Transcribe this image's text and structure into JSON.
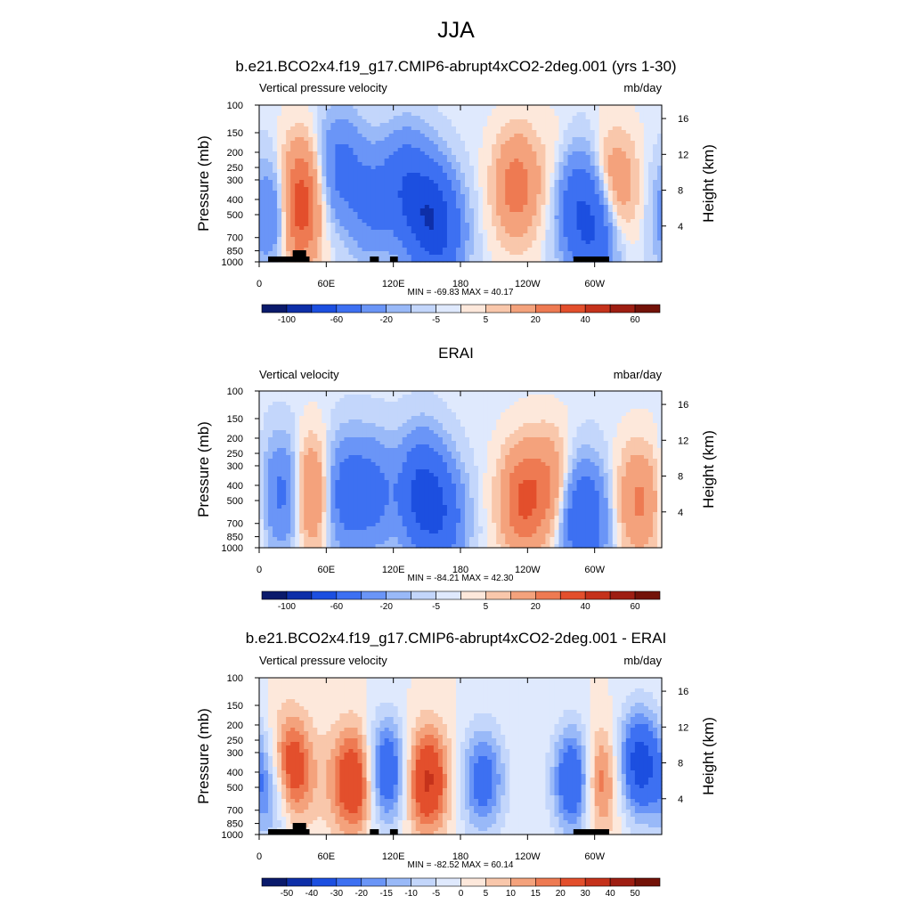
{
  "main_title": "JJA",
  "chart_data": [
    {
      "type": "heatmap",
      "title": "b.e21.BCO2x4.f19_g17.CMIP6-abrupt4xCO2-2deg.001 (yrs 1-30)",
      "left_label": "Vertical pressure velocity",
      "right_label": "mb/day",
      "ylabel": "Pressure (mb)",
      "y2label": "Height (km)",
      "xticks": [
        "0",
        "60E",
        "120E",
        "180",
        "120W",
        "60W"
      ],
      "xtick_values": [
        0,
        60,
        120,
        180,
        240,
        300
      ],
      "xlim": [
        0,
        360
      ],
      "pressure_ticks": [
        100,
        150,
        200,
        250,
        300,
        400,
        500,
        700,
        850,
        1000
      ],
      "height_ticks": [
        4,
        8,
        12,
        16
      ],
      "stats": "MIN = -69.83  MAX =  40.17",
      "colorbar_ticks": [
        "-100",
        "-60",
        "-20",
        "-5",
        "5",
        "20",
        "40",
        "60"
      ],
      "colorbar_levels": [
        -100,
        -80,
        -60,
        -40,
        -20,
        -10,
        -5,
        -1,
        1,
        5,
        10,
        20,
        30,
        40,
        50,
        60
      ],
      "anomalies": [
        {
          "lon": 15,
          "p": 500,
          "v": -30
        },
        {
          "lon": 36,
          "p": 350,
          "v": 28
        },
        {
          "lon": 32,
          "p": 600,
          "v": 24
        },
        {
          "lon": 72,
          "p": 250,
          "v": -24
        },
        {
          "lon": 100,
          "p": 420,
          "v": -22
        },
        {
          "lon": 130,
          "p": 330,
          "v": -30
        },
        {
          "lon": 150,
          "p": 500,
          "v": -40
        },
        {
          "lon": 165,
          "p": 650,
          "v": -28
        },
        {
          "lon": 230,
          "p": 330,
          "v": 26
        },
        {
          "lon": 282,
          "p": 400,
          "v": -32
        },
        {
          "lon": 300,
          "p": 650,
          "v": -35
        },
        {
          "lon": 318,
          "p": 330,
          "v": 20
        },
        {
          "lon": 270,
          "p": 300,
          "v": 10
        }
      ],
      "topo": [
        [
          8,
          45
        ],
        [
          99,
          107
        ],
        [
          117,
          124
        ],
        [
          281,
          313
        ],
        [
          30,
          42
        ]
      ]
    },
    {
      "type": "heatmap",
      "title": "ERAI",
      "left_label": "Vertical velocity",
      "right_label": "mbar/day",
      "ylabel": "Pressure (mb)",
      "y2label": "Height (km)",
      "xticks": [
        "0",
        "60E",
        "120E",
        "180",
        "120W",
        "60W"
      ],
      "xtick_values": [
        0,
        60,
        120,
        180,
        240,
        300
      ],
      "xlim": [
        0,
        360
      ],
      "pressure_ticks": [
        100,
        150,
        200,
        250,
        300,
        400,
        500,
        700,
        850,
        1000
      ],
      "height_ticks": [
        4,
        8,
        12,
        16
      ],
      "stats": "MIN = -84.21  MAX =  42.30",
      "colorbar_ticks": [
        "-100",
        "-60",
        "-20",
        "-5",
        "5",
        "20",
        "40",
        "60"
      ],
      "colorbar_levels": [
        -100,
        -80,
        -60,
        -40,
        -20,
        -10,
        -5,
        -1,
        1,
        5,
        10,
        20,
        30,
        40,
        50,
        60
      ],
      "anomalies": [
        {
          "lon": 24,
          "p": 450,
          "v": -30
        },
        {
          "lon": 45,
          "p": 450,
          "v": 32
        },
        {
          "lon": 75,
          "p": 450,
          "v": -28
        },
        {
          "lon": 102,
          "p": 450,
          "v": -24
        },
        {
          "lon": 145,
          "p": 450,
          "v": -45
        },
        {
          "lon": 165,
          "p": 650,
          "v": -28
        },
        {
          "lon": 235,
          "p": 500,
          "v": 30
        },
        {
          "lon": 260,
          "p": 400,
          "v": 18
        },
        {
          "lon": 290,
          "p": 650,
          "v": -40
        },
        {
          "lon": 340,
          "p": 500,
          "v": 22
        }
      ],
      "topo": []
    },
    {
      "type": "heatmap",
      "title": "b.e21.BCO2x4.f19_g17.CMIP6-abrupt4xCO2-2deg.001 - ERAI",
      "left_label": "Vertical pressure velocity",
      "right_label": "mb/day",
      "ylabel": "Pressure (mb)",
      "y2label": "Height (km)",
      "xticks": [
        "0",
        "60E",
        "120E",
        "180",
        "120W",
        "60W"
      ],
      "xtick_values": [
        0,
        60,
        120,
        180,
        240,
        300
      ],
      "xlim": [
        0,
        360
      ],
      "pressure_ticks": [
        100,
        150,
        200,
        250,
        300,
        400,
        500,
        700,
        850,
        1000
      ],
      "height_ticks": [
        4,
        8,
        12,
        16
      ],
      "stats": "MIN = -82.52  MAX =  60.14",
      "colorbar_ticks": [
        "-50",
        "-40",
        "-30",
        "-20",
        "-15",
        "-10",
        "-5",
        "0",
        "5",
        "10",
        "15",
        "20",
        "30",
        "40",
        "50"
      ],
      "colorbar_levels": [
        -60,
        -50,
        -40,
        -30,
        -20,
        -15,
        -10,
        -5,
        0,
        5,
        10,
        15,
        20,
        30,
        40,
        50,
        60
      ],
      "anomalies": [
        {
          "lon": 14,
          "p": 500,
          "v": -30
        },
        {
          "lon": 26,
          "p": 400,
          "v": 40
        },
        {
          "lon": 70,
          "p": 450,
          "v": 5
        },
        {
          "lon": 88,
          "p": 450,
          "v": 32
        },
        {
          "lon": 112,
          "p": 400,
          "v": -35
        },
        {
          "lon": 150,
          "p": 450,
          "v": 32
        },
        {
          "lon": 200,
          "p": 450,
          "v": -25
        },
        {
          "lon": 285,
          "p": 450,
          "v": -45
        },
        {
          "lon": 300,
          "p": 450,
          "v": 35
        },
        {
          "lon": 340,
          "p": 350,
          "v": -35
        }
      ],
      "topo": [
        [
          8,
          45
        ],
        [
          99,
          107
        ],
        [
          117,
          124
        ],
        [
          281,
          313
        ],
        [
          30,
          42
        ]
      ]
    }
  ]
}
